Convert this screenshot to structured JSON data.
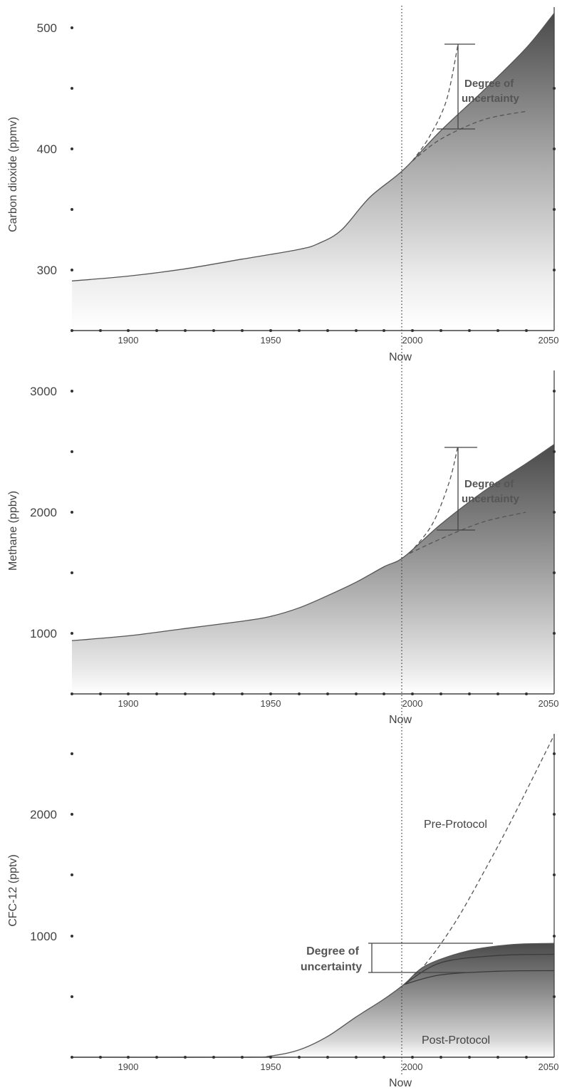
{
  "colors": {
    "fill_dark": "#4a4a4a",
    "fill_light": "#ffffff",
    "line": "#555555"
  },
  "now_label": "Now",
  "now_year": 1997,
  "chart_data": [
    {
      "type": "area",
      "ylabel": "Carbon dioxide (ppmv)",
      "xlim": [
        1880,
        2050
      ],
      "ylim": [
        250,
        515
      ],
      "xticks": [
        1900,
        1950,
        2000,
        2050
      ],
      "yticks": [
        300,
        400,
        500
      ],
      "x": [
        1880,
        1900,
        1920,
        1940,
        1960,
        1967,
        1975,
        1985,
        1997,
        2010,
        2025,
        2040,
        2050
      ],
      "values": [
        291,
        295,
        301,
        309,
        317,
        322,
        333,
        360,
        383,
        415,
        448,
        483,
        512
      ],
      "scenarios": [
        {
          "x": [
            2000,
            2006,
            2012,
            2016
          ],
          "values": [
            390,
            410,
            440,
            485
          ]
        },
        {
          "x": [
            2000,
            2010,
            2025,
            2040
          ],
          "values": [
            390,
            408,
            424,
            431
          ]
        }
      ],
      "uncertainty": {
        "label_line1": "Degree of",
        "label_line2": "uncertainty",
        "range": [
          415,
          485
        ]
      }
    },
    {
      "type": "area",
      "ylabel": "Methane (ppbv)",
      "xlim": [
        1880,
        2050
      ],
      "ylim": [
        500,
        3150
      ],
      "xticks": [
        1900,
        1950,
        2000,
        2050
      ],
      "yticks": [
        1000,
        2000,
        3000
      ],
      "x": [
        1880,
        1900,
        1920,
        1940,
        1950,
        1960,
        1970,
        1980,
        1990,
        1997,
        2010,
        2025,
        2040,
        2050
      ],
      "values": [
        940,
        980,
        1040,
        1100,
        1140,
        1210,
        1310,
        1420,
        1550,
        1630,
        1900,
        2170,
        2400,
        2560
      ],
      "scenarios": [
        {
          "x": [
            1999,
            2007,
            2013,
            2016
          ],
          "values": [
            1660,
            1900,
            2250,
            2540
          ]
        },
        {
          "x": [
            1999,
            2010,
            2025,
            2040
          ],
          "values": [
            1660,
            1780,
            1920,
            2000
          ]
        }
      ],
      "uncertainty": {
        "label_line1": "Degree of",
        "label_line2": "uncertainty",
        "range": [
          1850,
          2540
        ]
      }
    },
    {
      "type": "area",
      "ylabel": "CFC-12 (pptv)",
      "xlim": [
        1880,
        2050
      ],
      "ylim": [
        0,
        2650
      ],
      "xticks": [
        1900,
        1950,
        2000,
        2050
      ],
      "yticks": [
        1000,
        2000
      ],
      "x": [
        1880,
        1940,
        1950,
        1960,
        1970,
        1980,
        1990,
        1997,
        2005,
        2020,
        2035,
        2050
      ],
      "values": [
        0,
        0,
        10,
        60,
        170,
        330,
        480,
        600,
        760,
        880,
        930,
        940
      ],
      "post_protocol_curves": [
        {
          "x": [
            1997,
            2010,
            2030,
            2050
          ],
          "values": [
            600,
            780,
            840,
            850
          ]
        },
        {
          "x": [
            1997,
            2010,
            2030,
            2050
          ],
          "values": [
            600,
            680,
            710,
            715
          ]
        }
      ],
      "pre_protocol": {
        "x": [
          1997,
          2005,
          2015,
          2025,
          2035,
          2050
        ],
        "values": [
          600,
          780,
          1110,
          1520,
          1960,
          2660
        ]
      },
      "uncertainty": {
        "label_line1": "Degree of",
        "label_line2": "uncertainty",
        "range": [
          720,
          980
        ]
      },
      "annotations": {
        "pre": "Pre-Protocol",
        "post": "Post-Protocol"
      }
    }
  ]
}
